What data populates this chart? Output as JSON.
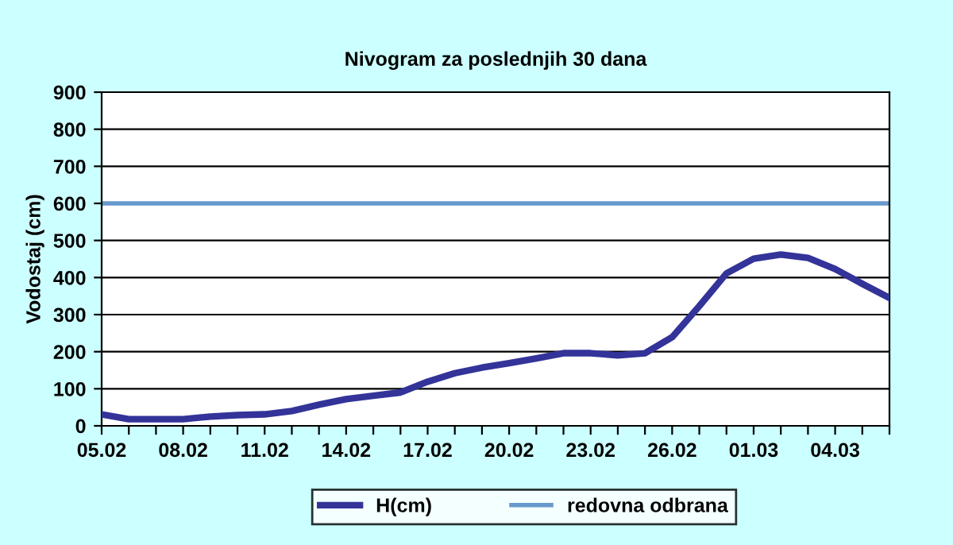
{
  "chart_data": {
    "type": "line",
    "title": "Nivogram za poslednjih 30 dana",
    "ylabel": "Vodostaj (cm)",
    "categories": [
      "05.02",
      null,
      null,
      "08.02",
      null,
      null,
      "11.02",
      null,
      null,
      "14.02",
      null,
      null,
      "17.02",
      null,
      null,
      "20.02",
      null,
      null,
      "23.02",
      null,
      null,
      "26.02",
      null,
      null,
      "01.03",
      null,
      null,
      "04.03",
      null,
      null
    ],
    "series": [
      {
        "name": "H(cm)",
        "color": "#333399",
        "values": [
          31,
          18,
          18,
          18,
          25,
          29,
          31,
          40,
          57,
          72,
          81,
          90,
          119,
          142,
          157,
          169,
          182,
          196,
          196,
          190,
          196,
          239,
          323,
          411,
          451,
          462,
          453,
          423,
          383,
          345
        ]
      }
    ],
    "ref_lines": [
      {
        "axis": "y",
        "value": 600,
        "label": "redovna odbrana",
        "color": "#6699cc"
      }
    ],
    "ylim": [
      0,
      900
    ],
    "yticks": [
      0,
      100,
      200,
      300,
      400,
      500,
      600,
      700,
      800,
      900
    ],
    "grid": "y",
    "legend": "bottom"
  }
}
